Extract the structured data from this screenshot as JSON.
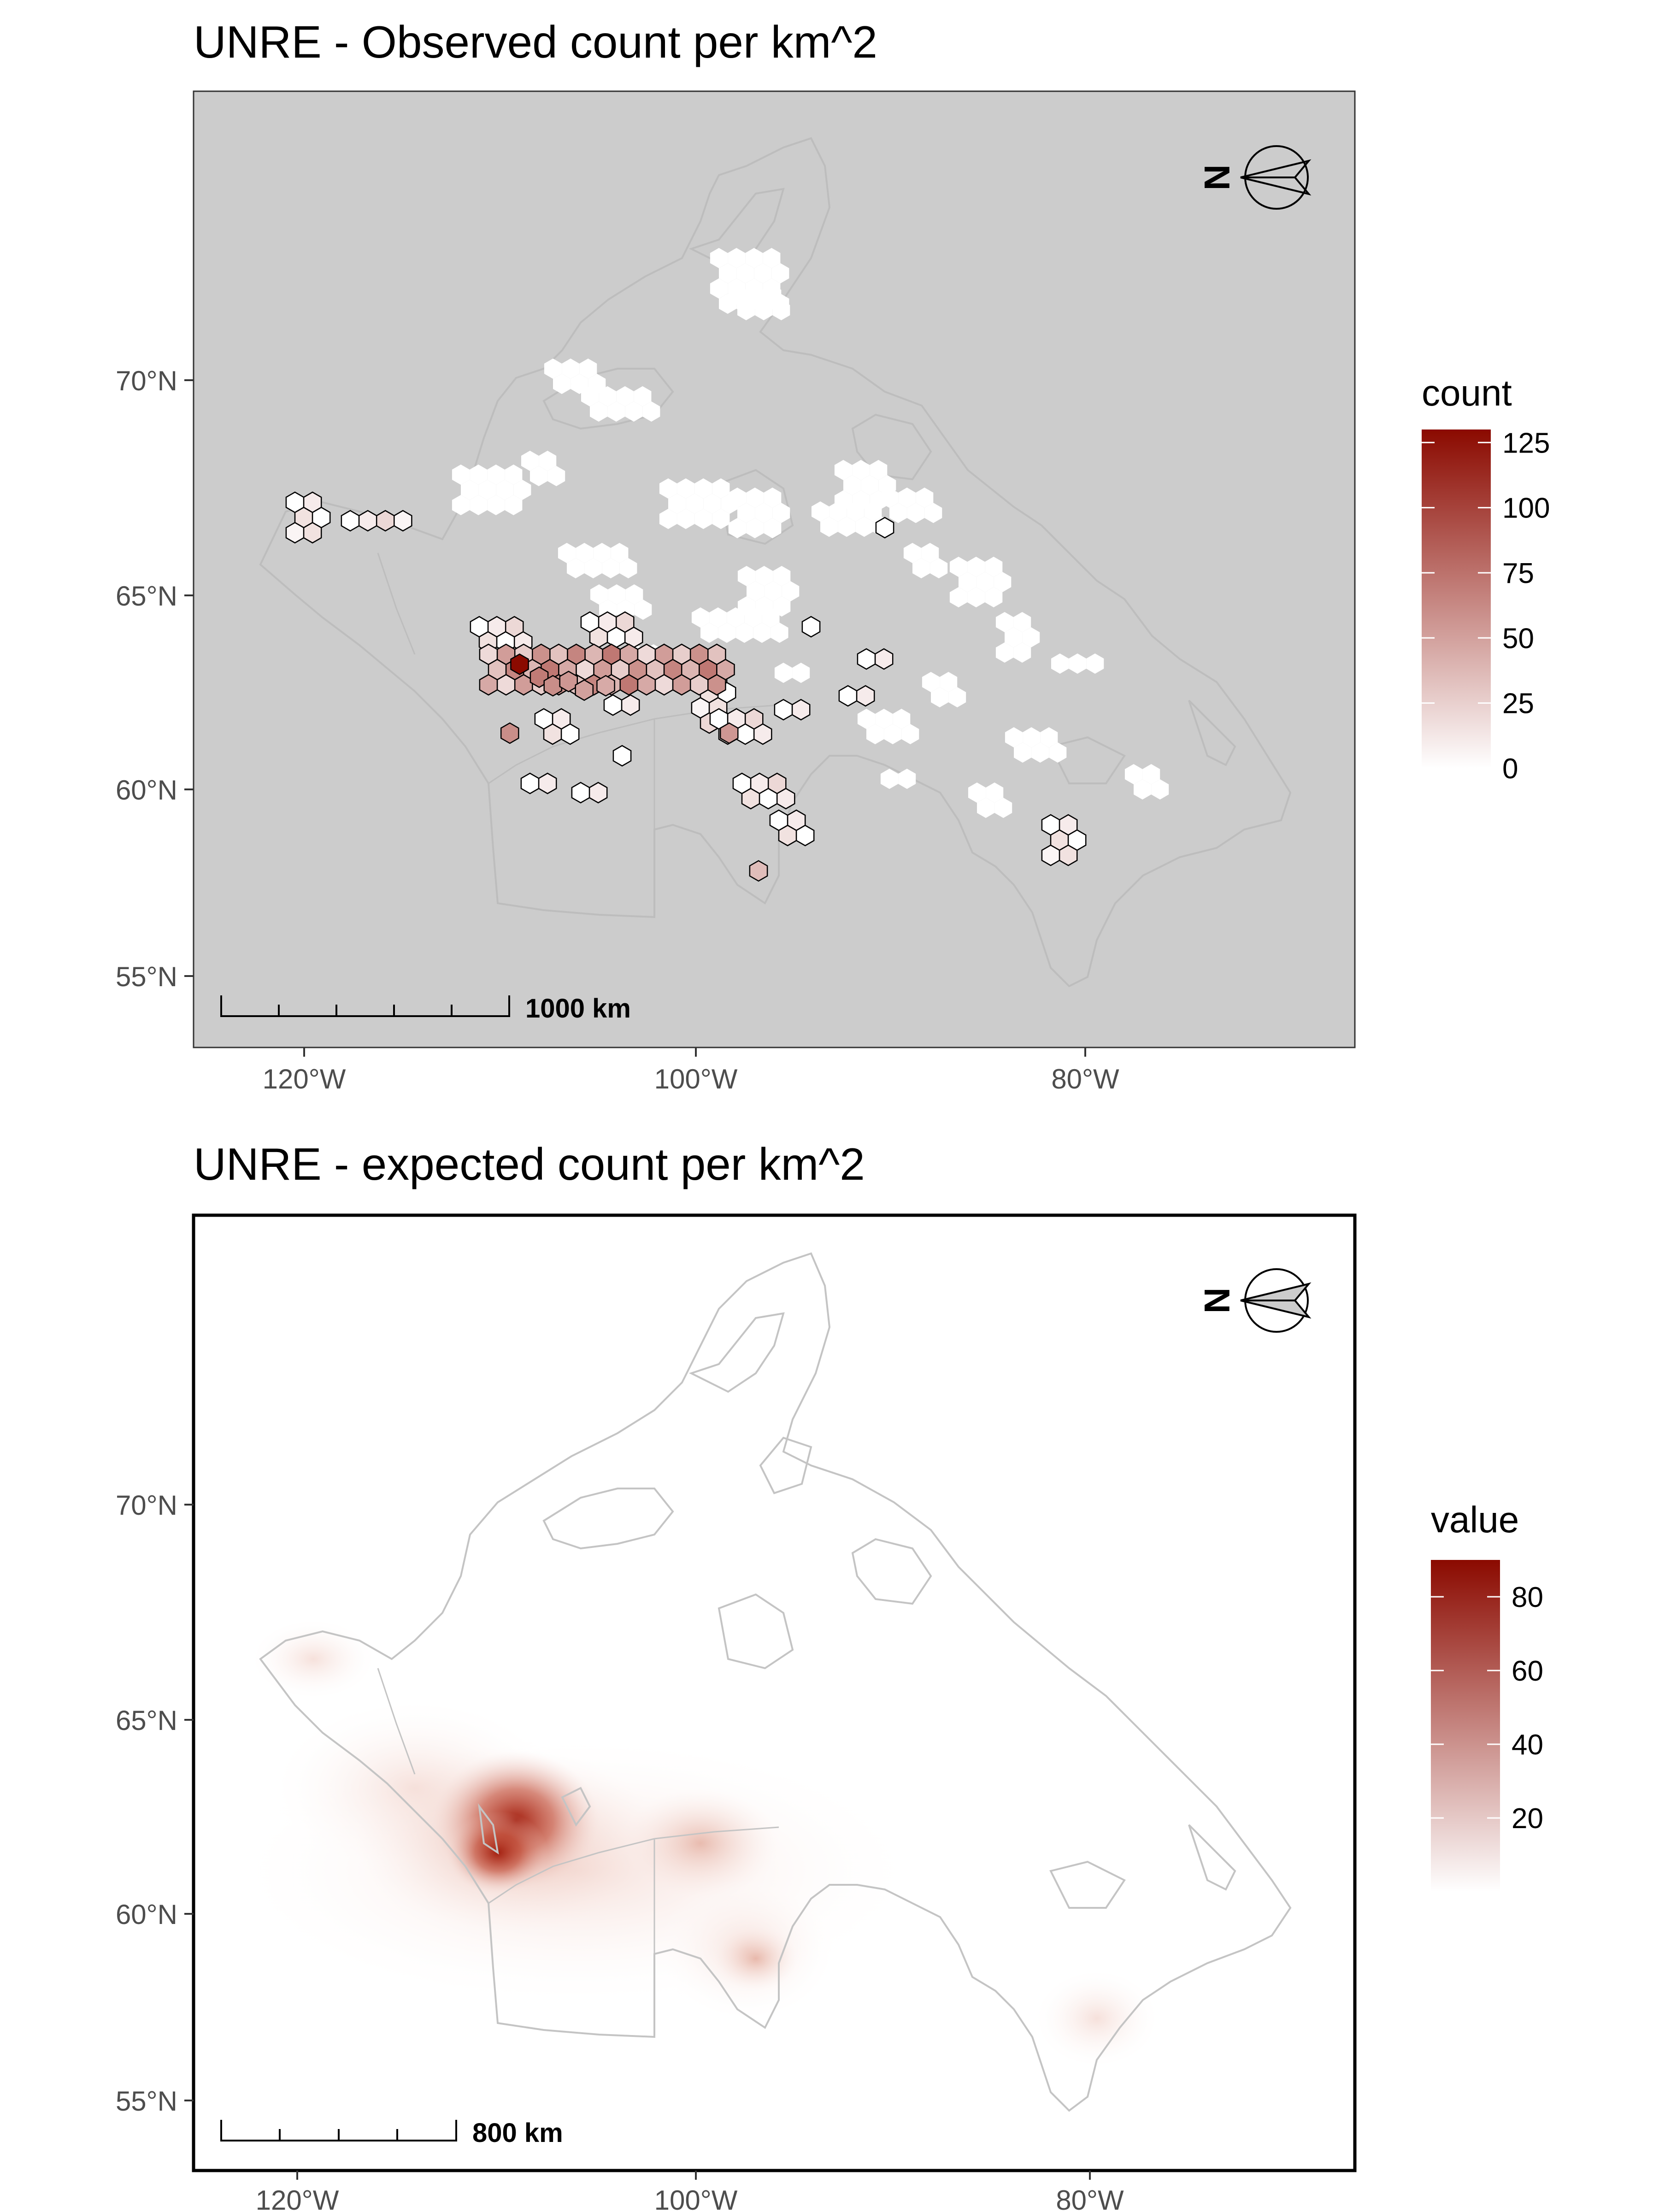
{
  "panels": [
    {
      "id": "observed",
      "title": "UNRE - Observed count per km^2",
      "background": "#cccccc",
      "frame_color": "#333333",
      "x_ticks": [
        "120°W",
        "100°W",
        "80°W"
      ],
      "y_ticks": [
        "70°N",
        "65°N",
        "60°N",
        "55°N"
      ],
      "legend": {
        "title": "count",
        "ticks": [
          "125",
          "100",
          "75",
          "50",
          "25",
          "0"
        ],
        "min": 0,
        "max": 130,
        "low_color": "#ffffff",
        "high_color": "#8b0a00"
      },
      "scale_bar_label": "1000 km",
      "north_arrow_label": "N",
      "hex_counts": {
        "description_source": "hexagon cells with observed counts",
        "nonzero_cells": [
          {
            "lon": -109.0,
            "lat": 63.4,
            "count": 130
          },
          {
            "lon": -108.0,
            "lat": 63.1,
            "count": 70
          },
          {
            "lon": -107.3,
            "lat": 62.9,
            "count": 60
          },
          {
            "lon": -106.5,
            "lat": 63.0,
            "count": 55
          },
          {
            "lon": -105.7,
            "lat": 62.8,
            "count": 50
          },
          {
            "lon": -104.6,
            "lat": 62.9,
            "count": 45
          },
          {
            "lon": -98.3,
            "lat": 61.8,
            "count": 55
          },
          {
            "lon": -109.5,
            "lat": 61.8,
            "count": 60
          },
          {
            "lon": -96.8,
            "lat": 58.6,
            "count": 35
          }
        ]
      }
    },
    {
      "id": "expected",
      "title": "UNRE - expected count per km^2",
      "background": "#ffffff",
      "frame_color": "#000000",
      "x_ticks": [
        "120°W",
        "100°W",
        "80°W"
      ],
      "y_ticks": [
        "70°N",
        "65°N",
        "60°N",
        "55°N"
      ],
      "legend": {
        "title": "value",
        "ticks": [
          "80",
          "60",
          "40",
          "20"
        ],
        "min": 0,
        "max": 90,
        "low_color": "#ffffff",
        "high_color": "#8b0a00"
      },
      "scale_bar_label": "800 km",
      "north_arrow_label": "N"
    }
  ]
}
